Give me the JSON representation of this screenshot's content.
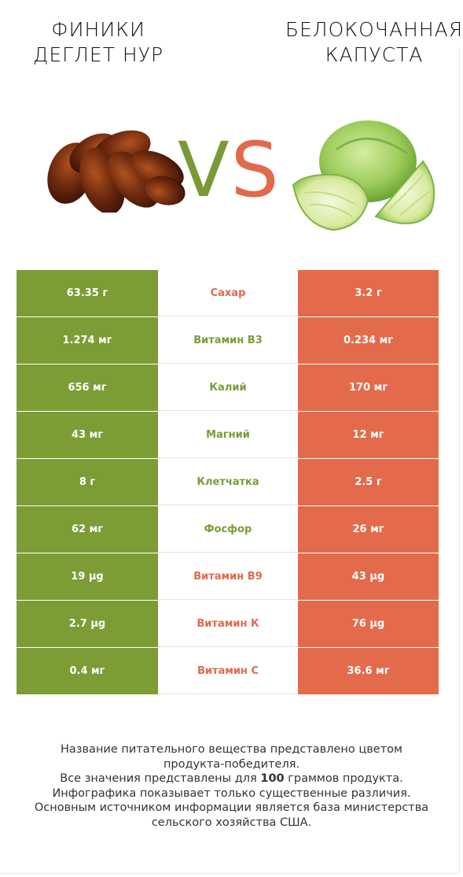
{
  "left_food": {
    "title_line1": "ФИНИКИ",
    "title_line2": "ДЕГЛЕТ НУР",
    "color": "#7c9c36"
  },
  "right_food": {
    "title_line1": "БЕЛОКОЧАННАЯ",
    "title_line2": "КАПУСТА",
    "color": "#e36b4c"
  },
  "vs": {
    "v": "V",
    "s": "S"
  },
  "rows": [
    {
      "left": "63.35 г",
      "name": "Сахар",
      "right": "3.2 г",
      "winner": "right"
    },
    {
      "left": "1.274 мг",
      "name": "Витамин B3",
      "right": "0.234 мг",
      "winner": "left"
    },
    {
      "left": "656 мг",
      "name": "Калий",
      "right": "170 мг",
      "winner": "left"
    },
    {
      "left": "43 мг",
      "name": "Магний",
      "right": "12 мг",
      "winner": "left"
    },
    {
      "left": "8 г",
      "name": "Клетчатка",
      "right": "2.5 г",
      "winner": "left"
    },
    {
      "left": "62 мг",
      "name": "Фосфор",
      "right": "26 мг",
      "winner": "left"
    },
    {
      "left": "19 µg",
      "name": "Витамин B9",
      "right": "43 µg",
      "winner": "right"
    },
    {
      "left": "2.7 µg",
      "name": "Витамин К",
      "right": "76 µg",
      "winner": "right"
    },
    {
      "left": "0.4 мг",
      "name": "Витамин C",
      "right": "36.6 мг",
      "winner": "right"
    }
  ],
  "footer": {
    "line1": "Название питательного вещества представлено цветом",
    "line2": "продукта-победителя.",
    "line3_pre": "Все значения представлены для ",
    "line3_bold": "100",
    "line3_post": " граммов продукта.",
    "line4": "Инфографика показывает только существенные различия.",
    "line5": "Основным источником информации является база министерства",
    "line6": "сельского хозяйства США."
  }
}
